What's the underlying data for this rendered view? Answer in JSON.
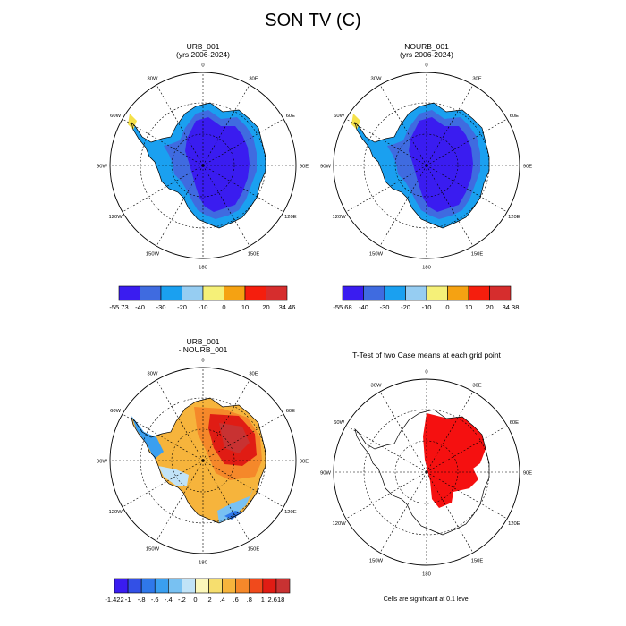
{
  "title": "SON TV (C)",
  "panels": [
    {
      "id": "urb",
      "title_line1": "URB_001",
      "title_line2": "(yrs 2006-2024)"
    },
    {
      "id": "nourb",
      "title_line1": "NOURB_001",
      "title_line2": "(yrs 2006-2024)"
    },
    {
      "id": "diff",
      "title_line1": "URB_001",
      "title_line2": "- NOURB_001"
    },
    {
      "id": "ttest",
      "title_line1": "T-Test of two Case means at each grid point",
      "title_line2": ""
    }
  ],
  "map_labels": {
    "top": "0",
    "top_right": "30E",
    "right_upper": "60E",
    "right": "90E",
    "right_lower": "120E",
    "bottom_right": "150E",
    "bottom": "180",
    "bottom_left": "150W",
    "left_lower": "120W",
    "left": "90W",
    "left_upper": "60W",
    "top_left": "30W"
  },
  "colorbars": {
    "urb": {
      "labels": [
        "-55.73",
        "-40",
        "-30",
        "-20",
        "-10",
        "0",
        "10",
        "20",
        "34.46"
      ],
      "colors": [
        "#3a1cf0",
        "#3f6be0",
        "#1aa0f0",
        "#96cdf2",
        "#f5f078",
        "#f5a212",
        "#f51e0d",
        "#d62d2d"
      ]
    },
    "nourb": {
      "labels": [
        "-55.68",
        "-40",
        "-30",
        "-20",
        "-10",
        "0",
        "10",
        "20",
        "34.38"
      ],
      "colors": [
        "#3a1cf0",
        "#3f6be0",
        "#1aa0f0",
        "#96cdf2",
        "#f5f078",
        "#f5a212",
        "#f51e0d",
        "#d62d2d"
      ]
    },
    "diff": {
      "labels": [
        "-1.422",
        "-1",
        "-.8",
        "-.6",
        "-.4",
        "-.2",
        "0",
        ".2",
        ".4",
        ".6",
        ".8",
        "1",
        "2.618"
      ],
      "colors": [
        "#3a1cf0",
        "#3350e6",
        "#2f78ea",
        "#3a9ff0",
        "#78c1f2",
        "#c1e3f7",
        "#fbf7ba",
        "#f6de6e",
        "#f6b43c",
        "#f5882a",
        "#f04a1c",
        "#e01c14",
        "#c83232"
      ]
    }
  },
  "footnote": "Cells are significant at 0.1 level",
  "colors": {
    "plateau": "#3a1cf0",
    "slope": "#3f6be0",
    "coast": "#1aa0f0",
    "peninsula_tip": "#f5e14a",
    "signif": "#f51010"
  }
}
